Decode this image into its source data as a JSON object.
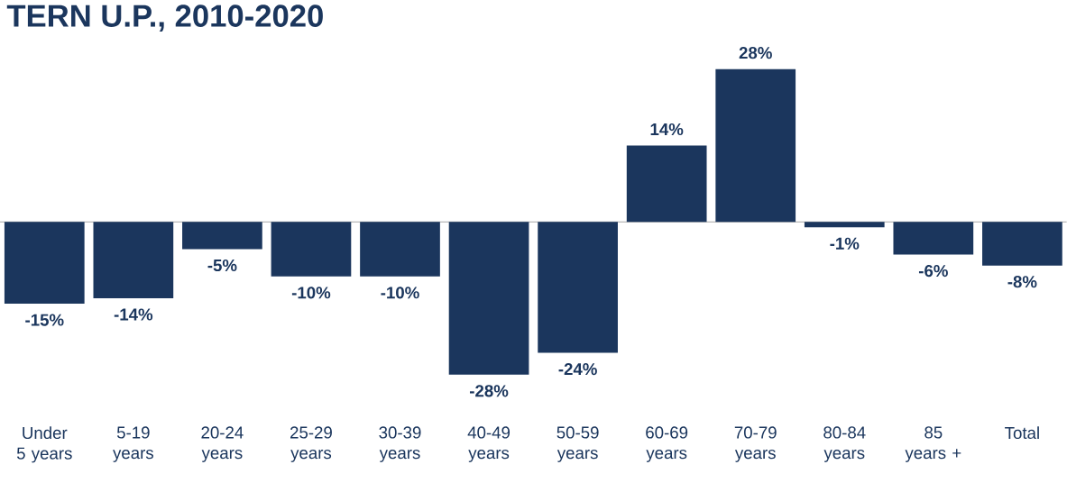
{
  "chart_data": {
    "type": "bar",
    "title": "TERN U.P., 2010-2020",
    "categories": [
      "Under 5 years",
      "5-19 years",
      "20-24 years",
      "25-29 years",
      "30-39 years",
      "40-49 years",
      "50-59 years",
      "60-69 years",
      "70-79 years",
      "80-84 years",
      "85 years +",
      "Total"
    ],
    "values": [
      -15,
      -14,
      -5,
      -10,
      -10,
      -28,
      -24,
      14,
      28,
      -1,
      -6,
      -8
    ],
    "value_labels": [
      "-15%",
      "-14%",
      "-5%",
      "-10%",
      "-10%",
      "-28%",
      "-24%",
      "14%",
      "28%",
      "-1%",
      "-6%",
      "-8%"
    ],
    "color": "#1b365d"
  }
}
